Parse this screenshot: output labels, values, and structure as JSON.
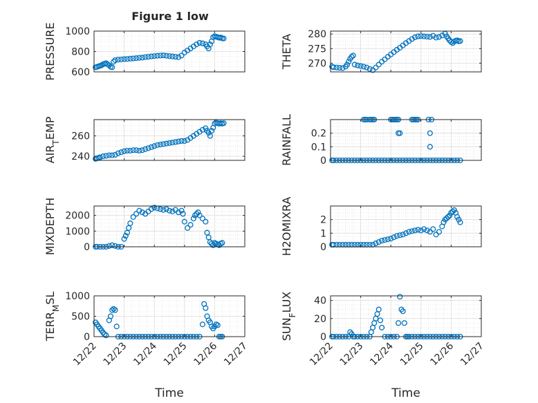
{
  "figure": {
    "title": "Figure 1 low",
    "marker_color": "#0072BD"
  },
  "x_ticks": [
    "12/22",
    "12/23",
    "12/24",
    "12/25",
    "12/26",
    "12/27"
  ],
  "chart_data": [
    {
      "type": "scatter",
      "ylabel": "PRESSURE",
      "xlabel": "",
      "title": "Figure 1 low",
      "xlim": [
        0,
        5
      ],
      "ylim": [
        600,
        1000
      ],
      "yticks": [
        600,
        800,
        1000
      ],
      "grid": true,
      "series": [
        {
          "x": [
            0.05,
            0.1,
            0.15,
            0.2,
            0.25,
            0.3,
            0.35,
            0.4,
            0.45,
            0.5,
            0.55,
            0.6,
            0.65,
            0.7,
            0.8,
            0.9,
            1.0,
            1.1,
            1.2,
            1.3,
            1.4,
            1.5,
            1.6,
            1.7,
            1.8,
            1.9,
            2.0,
            2.1,
            2.2,
            2.3,
            2.4,
            2.5,
            2.6,
            2.7,
            2.8,
            2.9,
            3.0,
            3.1,
            3.2,
            3.3,
            3.4,
            3.5,
            3.6,
            3.7,
            3.75,
            3.8,
            3.85,
            3.9,
            3.95,
            4.0,
            4.05,
            4.1,
            4.15,
            4.2,
            4.25,
            4.3
          ],
          "y": [
            645,
            650,
            655,
            660,
            665,
            675,
            680,
            685,
            675,
            665,
            650,
            645,
            700,
            715,
            720,
            722,
            725,
            727,
            730,
            732,
            735,
            738,
            740,
            745,
            748,
            752,
            755,
            758,
            760,
            762,
            758,
            755,
            752,
            748,
            745,
            760,
            790,
            810,
            830,
            850,
            870,
            885,
            880,
            870,
            850,
            830,
            870,
            900,
            940,
            950,
            945,
            940,
            935,
            938,
            930,
            928
          ]
        }
      ]
    },
    {
      "type": "scatter",
      "ylabel": "THETA",
      "xlabel": "",
      "xlim": [
        0,
        5
      ],
      "ylim": [
        267,
        281
      ],
      "yticks": [
        270,
        275,
        280
      ],
      "grid": true,
      "series": [
        {
          "x": [
            0.05,
            0.1,
            0.2,
            0.3,
            0.4,
            0.5,
            0.55,
            0.6,
            0.65,
            0.7,
            0.75,
            0.8,
            0.9,
            1.0,
            1.1,
            1.2,
            1.3,
            1.4,
            1.5,
            1.6,
            1.7,
            1.8,
            1.9,
            2.0,
            2.1,
            2.2,
            2.3,
            2.4,
            2.5,
            2.6,
            2.7,
            2.8,
            2.9,
            3.0,
            3.1,
            3.2,
            3.3,
            3.4,
            3.5,
            3.6,
            3.7,
            3.8,
            3.85,
            3.9,
            3.95,
            4.0,
            4.05,
            4.1,
            4.15,
            4.2,
            4.25,
            4.3
          ],
          "y": [
            268.8,
            268.6,
            268.5,
            268.4,
            268.3,
            268.8,
            269.5,
            270.5,
            271.5,
            272.2,
            272.6,
            269.5,
            269.2,
            269.0,
            268.8,
            268.5,
            268.0,
            267.6,
            268.5,
            269.5,
            270.5,
            271.3,
            272.2,
            273.0,
            273.8,
            274.6,
            275.3,
            276.1,
            276.9,
            277.6,
            278.3,
            278.9,
            279.2,
            279.3,
            279.2,
            279.1,
            279.0,
            279.4,
            278.8,
            279.0,
            279.5,
            280.1,
            279.2,
            278.5,
            277.8,
            277.3,
            276.9,
            277.4,
            277.7,
            277.8,
            277.5,
            277.6
          ]
        }
      ]
    },
    {
      "type": "scatter",
      "ylabel": "AIR_TEMP",
      "xlabel": "",
      "xlim": [
        0,
        5
      ],
      "ylim": [
        236,
        276
      ],
      "yticks": [
        240,
        260
      ],
      "grid": true,
      "series": [
        {
          "x": [
            0.05,
            0.1,
            0.15,
            0.2,
            0.3,
            0.4,
            0.5,
            0.6,
            0.7,
            0.8,
            0.9,
            1.0,
            1.1,
            1.2,
            1.3,
            1.4,
            1.5,
            1.6,
            1.7,
            1.8,
            1.9,
            2.0,
            2.1,
            2.2,
            2.3,
            2.4,
            2.5,
            2.6,
            2.7,
            2.8,
            2.9,
            3.0,
            3.1,
            3.2,
            3.3,
            3.4,
            3.5,
            3.6,
            3.7,
            3.75,
            3.8,
            3.85,
            3.9,
            3.95,
            4.0,
            4.05,
            4.1,
            4.15,
            4.2,
            4.25,
            4.3
          ],
          "y": [
            237.5,
            238,
            238.5,
            239,
            240,
            240.5,
            241,
            241,
            241.5,
            243,
            244,
            245,
            245.5,
            245.5,
            246,
            246,
            245.5,
            246,
            247,
            248,
            249,
            250,
            251,
            251.5,
            252,
            252.5,
            253,
            253.5,
            254,
            254.5,
            255,
            255,
            256,
            258,
            260,
            262,
            264,
            266,
            267.5,
            265,
            263,
            260,
            265,
            268,
            272,
            273,
            272.5,
            272,
            272.5,
            272,
            272.5
          ]
        }
      ]
    },
    {
      "type": "scatter",
      "ylabel": "RAINFALL",
      "xlabel": "",
      "xlim": [
        0,
        5
      ],
      "ylim": [
        0,
        0.3
      ],
      "yticks": [
        0,
        0.1,
        0.2
      ],
      "grid": true,
      "series": [
        {
          "x": [
            0.05,
            0.1,
            0.2,
            0.3,
            0.4,
            0.5,
            0.6,
            0.7,
            0.8,
            0.9,
            1.0,
            1.1,
            1.2,
            1.3,
            1.4,
            1.5,
            1.6,
            1.7,
            1.8,
            1.9,
            2.0,
            2.1,
            2.2,
            2.3,
            2.4,
            2.5,
            2.6,
            2.7,
            2.8,
            2.9,
            3.0,
            3.1,
            3.2,
            3.3,
            3.4,
            3.5,
            3.6,
            3.7,
            3.8,
            3.9,
            4.0,
            4.1,
            4.2,
            4.3,
            1.1,
            1.15,
            1.2,
            1.3,
            1.35,
            1.4,
            1.45,
            2.0,
            2.05,
            2.1,
            2.15,
            2.2,
            2.25,
            2.25,
            2.3,
            2.7,
            2.75,
            2.8,
            2.85,
            2.9,
            3.25,
            3.3,
            3.3,
            3.35
          ],
          "y": [
            0,
            0,
            0,
            0,
            0,
            0,
            0,
            0,
            0,
            0,
            0,
            0,
            0,
            0,
            0,
            0,
            0,
            0,
            0,
            0,
            0,
            0,
            0,
            0,
            0,
            0,
            0,
            0,
            0,
            0,
            0,
            0,
            0,
            0,
            0,
            0,
            0,
            0,
            0,
            0,
            0,
            0,
            0,
            0,
            0.3,
            0.3,
            0.3,
            0.3,
            0.3,
            0.3,
            0.3,
            0.3,
            0.3,
            0.3,
            0.3,
            0.3,
            0.3,
            0.2,
            0.2,
            0.3,
            0.3,
            0.3,
            0.3,
            0.3,
            0.3,
            0.2,
            0.1,
            0.3
          ]
        }
      ]
    },
    {
      "type": "scatter",
      "ylabel": "MIXDEPTH",
      "xlabel": "",
      "xlim": [
        0,
        5
      ],
      "ylim": [
        0,
        2600
      ],
      "yticks": [
        0,
        1000,
        2000
      ],
      "grid": true,
      "series": [
        {
          "x": [
            0.05,
            0.1,
            0.2,
            0.3,
            0.4,
            0.5,
            0.6,
            0.7,
            0.8,
            0.9,
            1.0,
            1.05,
            1.1,
            1.15,
            1.2,
            1.3,
            1.4,
            1.5,
            1.6,
            1.7,
            1.8,
            1.9,
            2.0,
            2.1,
            2.2,
            2.3,
            2.4,
            2.5,
            2.6,
            2.7,
            2.8,
            2.9,
            2.95,
            3.0,
            3.1,
            3.2,
            3.3,
            3.35,
            3.4,
            3.45,
            3.5,
            3.6,
            3.7,
            3.75,
            3.8,
            3.85,
            3.9,
            3.95,
            4.0,
            4.05,
            4.1,
            4.15,
            4.2,
            4.25
          ],
          "y": [
            0,
            0,
            0,
            0,
            0,
            50,
            100,
            50,
            0,
            0,
            500,
            700,
            900,
            1200,
            1500,
            1900,
            2100,
            2300,
            2200,
            2100,
            2250,
            2400,
            2500,
            2450,
            2400,
            2350,
            2400,
            2300,
            2250,
            2350,
            2200,
            2300,
            2100,
            1600,
            1200,
            1400,
            1800,
            2000,
            2100,
            2200,
            2000,
            1800,
            1600,
            900,
            600,
            300,
            200,
            100,
            250,
            200,
            150,
            100,
            200,
            250
          ]
        }
      ]
    },
    {
      "type": "scatter",
      "ylabel": "H2OMIXRA",
      "xlabel": "",
      "xlim": [
        0,
        5
      ],
      "ylim": [
        0,
        3
      ],
      "yticks": [
        0,
        1,
        2
      ],
      "grid": true,
      "series": [
        {
          "x": [
            0.05,
            0.1,
            0.2,
            0.3,
            0.4,
            0.5,
            0.6,
            0.7,
            0.8,
            0.9,
            1.0,
            1.1,
            1.2,
            1.3,
            1.4,
            1.5,
            1.6,
            1.7,
            1.8,
            1.9,
            2.0,
            2.1,
            2.2,
            2.3,
            2.4,
            2.5,
            2.6,
            2.7,
            2.8,
            2.9,
            3.0,
            3.1,
            3.2,
            3.3,
            3.4,
            3.5,
            3.6,
            3.7,
            3.75,
            3.8,
            3.85,
            3.9,
            3.95,
            4.0,
            4.05,
            4.1,
            4.15,
            4.2,
            4.25,
            4.3
          ],
          "y": [
            0.15,
            0.15,
            0.15,
            0.15,
            0.15,
            0.15,
            0.15,
            0.15,
            0.15,
            0.15,
            0.15,
            0.15,
            0.15,
            0.15,
            0.15,
            0.25,
            0.35,
            0.45,
            0.5,
            0.55,
            0.6,
            0.7,
            0.8,
            0.85,
            0.9,
            1.0,
            1.1,
            1.15,
            1.2,
            1.25,
            1.2,
            1.3,
            1.2,
            1.1,
            1.3,
            0.9,
            1.1,
            1.5,
            1.8,
            2.0,
            2.1,
            2.2,
            2.3,
            2.5,
            2.6,
            2.7,
            2.5,
            2.2,
            2.0,
            1.8
          ]
        }
      ]
    },
    {
      "type": "scatter",
      "ylabel": "TERR_MSL",
      "xlabel": "Time",
      "xlim": [
        0,
        5
      ],
      "ylim": [
        0,
        1000
      ],
      "yticks": [
        0,
        500,
        1000
      ],
      "grid": true,
      "series": [
        {
          "x": [
            0.05,
            0.1,
            0.15,
            0.2,
            0.25,
            0.3,
            0.35,
            0.4,
            0.5,
            0.55,
            0.6,
            0.65,
            0.7,
            0.75,
            0.8,
            0.9,
            1.0,
            1.1,
            1.2,
            1.3,
            1.4,
            1.5,
            1.6,
            1.7,
            1.8,
            1.9,
            2.0,
            2.1,
            2.2,
            2.3,
            2.4,
            2.5,
            2.6,
            2.7,
            2.8,
            2.9,
            3.0,
            3.1,
            3.2,
            3.3,
            3.4,
            3.5,
            3.6,
            3.65,
            3.7,
            3.75,
            3.8,
            3.85,
            3.9,
            3.95,
            4.0,
            4.05,
            4.1,
            4.15,
            4.2,
            4.25
          ],
          "y": [
            350,
            300,
            250,
            200,
            150,
            100,
            60,
            30,
            400,
            500,
            650,
            680,
            650,
            250,
            0,
            0,
            0,
            0,
            0,
            0,
            0,
            0,
            0,
            0,
            0,
            0,
            0,
            0,
            0,
            0,
            0,
            0,
            0,
            0,
            0,
            0,
            0,
            0,
            0,
            0,
            0,
            0,
            300,
            800,
            700,
            500,
            400,
            350,
            250,
            200,
            250,
            300,
            280,
            0,
            0,
            0
          ]
        }
      ]
    },
    {
      "type": "scatter",
      "ylabel": "SUN_FLUX",
      "xlabel": "Time",
      "xlim": [
        0,
        5
      ],
      "ylim": [
        0,
        45
      ],
      "yticks": [
        0,
        20,
        40
      ],
      "grid": true,
      "series": [
        {
          "x": [
            0.05,
            0.1,
            0.2,
            0.3,
            0.4,
            0.5,
            0.6,
            0.65,
            0.7,
            0.75,
            0.8,
            0.9,
            1.0,
            1.1,
            1.2,
            1.3,
            1.35,
            1.4,
            1.45,
            1.5,
            1.55,
            1.6,
            1.65,
            1.7,
            1.8,
            1.9,
            2.0,
            2.1,
            2.2,
            2.25,
            2.3,
            2.35,
            2.4,
            2.45,
            2.5,
            2.55,
            2.6,
            2.7,
            2.8,
            2.9,
            3.0,
            3.1,
            3.2,
            3.3,
            3.4,
            3.5,
            3.6,
            3.7,
            3.8,
            3.9,
            4.0,
            4.1,
            4.2,
            4.3
          ],
          "y": [
            0,
            0,
            0,
            0,
            0,
            0,
            0,
            5,
            3,
            0,
            0,
            0,
            0,
            0,
            0,
            0,
            5,
            10,
            15,
            20,
            25,
            30,
            18,
            10,
            0,
            0,
            0,
            0,
            0,
            15,
            44,
            30,
            28,
            15,
            0,
            0,
            0,
            0,
            0,
            0,
            0,
            0,
            0,
            0,
            0,
            0,
            0,
            0,
            0,
            0,
            0,
            0,
            0,
            0
          ]
        }
      ]
    }
  ]
}
